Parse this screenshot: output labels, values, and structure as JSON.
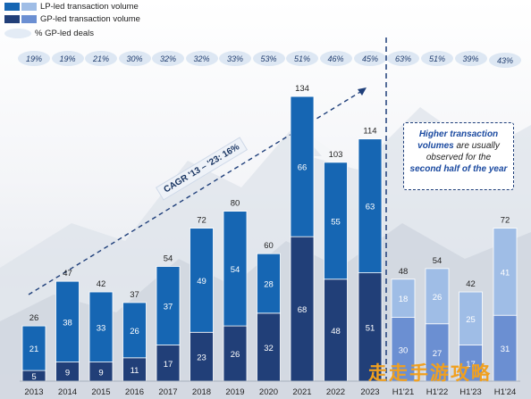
{
  "legend": {
    "lp_label": "LP-led transaction volume",
    "gp_label": "GP-led transaction volume",
    "pct_label": "% GP-led deals"
  },
  "colors": {
    "lp_actual": "#1666b3",
    "gp_actual": "#213f78",
    "lp_half": "#9fbde6",
    "gp_half": "#6b8fd2",
    "pct_bubble": "#dde7f3"
  },
  "pct_labels": [
    "19%",
    "19%",
    "21%",
    "30%",
    "32%",
    "32%",
    "33%",
    "53%",
    "51%",
    "46%",
    "45%",
    "63%",
    "51%",
    "39%",
    "43%"
  ],
  "cagr_label": "CAGR '13 – '23: 16%",
  "callout": {
    "part1": "Higher transaction volumes",
    "part2": " are usually observed for the ",
    "part3": "second half of the year"
  },
  "watermark": "走走手游攻略",
  "chart_data": {
    "type": "bar",
    "stacked": true,
    "categories": [
      "2013",
      "2014",
      "2015",
      "2016",
      "2017",
      "2018",
      "2019",
      "2020",
      "2021",
      "2022",
      "2023",
      "H1'21",
      "H1'22",
      "H1'23",
      "H1'24"
    ],
    "series": [
      {
        "name": "GP-led transaction volume",
        "values": [
          5,
          9,
          9,
          11,
          17,
          23,
          26,
          32,
          68,
          48,
          51,
          30,
          27,
          17,
          31
        ]
      },
      {
        "name": "LP-led transaction volume",
        "values": [
          21,
          38,
          33,
          26,
          37,
          49,
          54,
          28,
          66,
          55,
          63,
          18,
          26,
          25,
          41
        ]
      }
    ],
    "totals": [
      26,
      47,
      42,
      37,
      54,
      72,
      80,
      60,
      134,
      103,
      114,
      48,
      54,
      42,
      72
    ],
    "pct_gp_led": [
      "19%",
      "19%",
      "21%",
      "30%",
      "32%",
      "32%",
      "33%",
      "53%",
      "51%",
      "46%",
      "45%",
      "63%",
      "51%",
      "39%",
      "43%"
    ]
  }
}
